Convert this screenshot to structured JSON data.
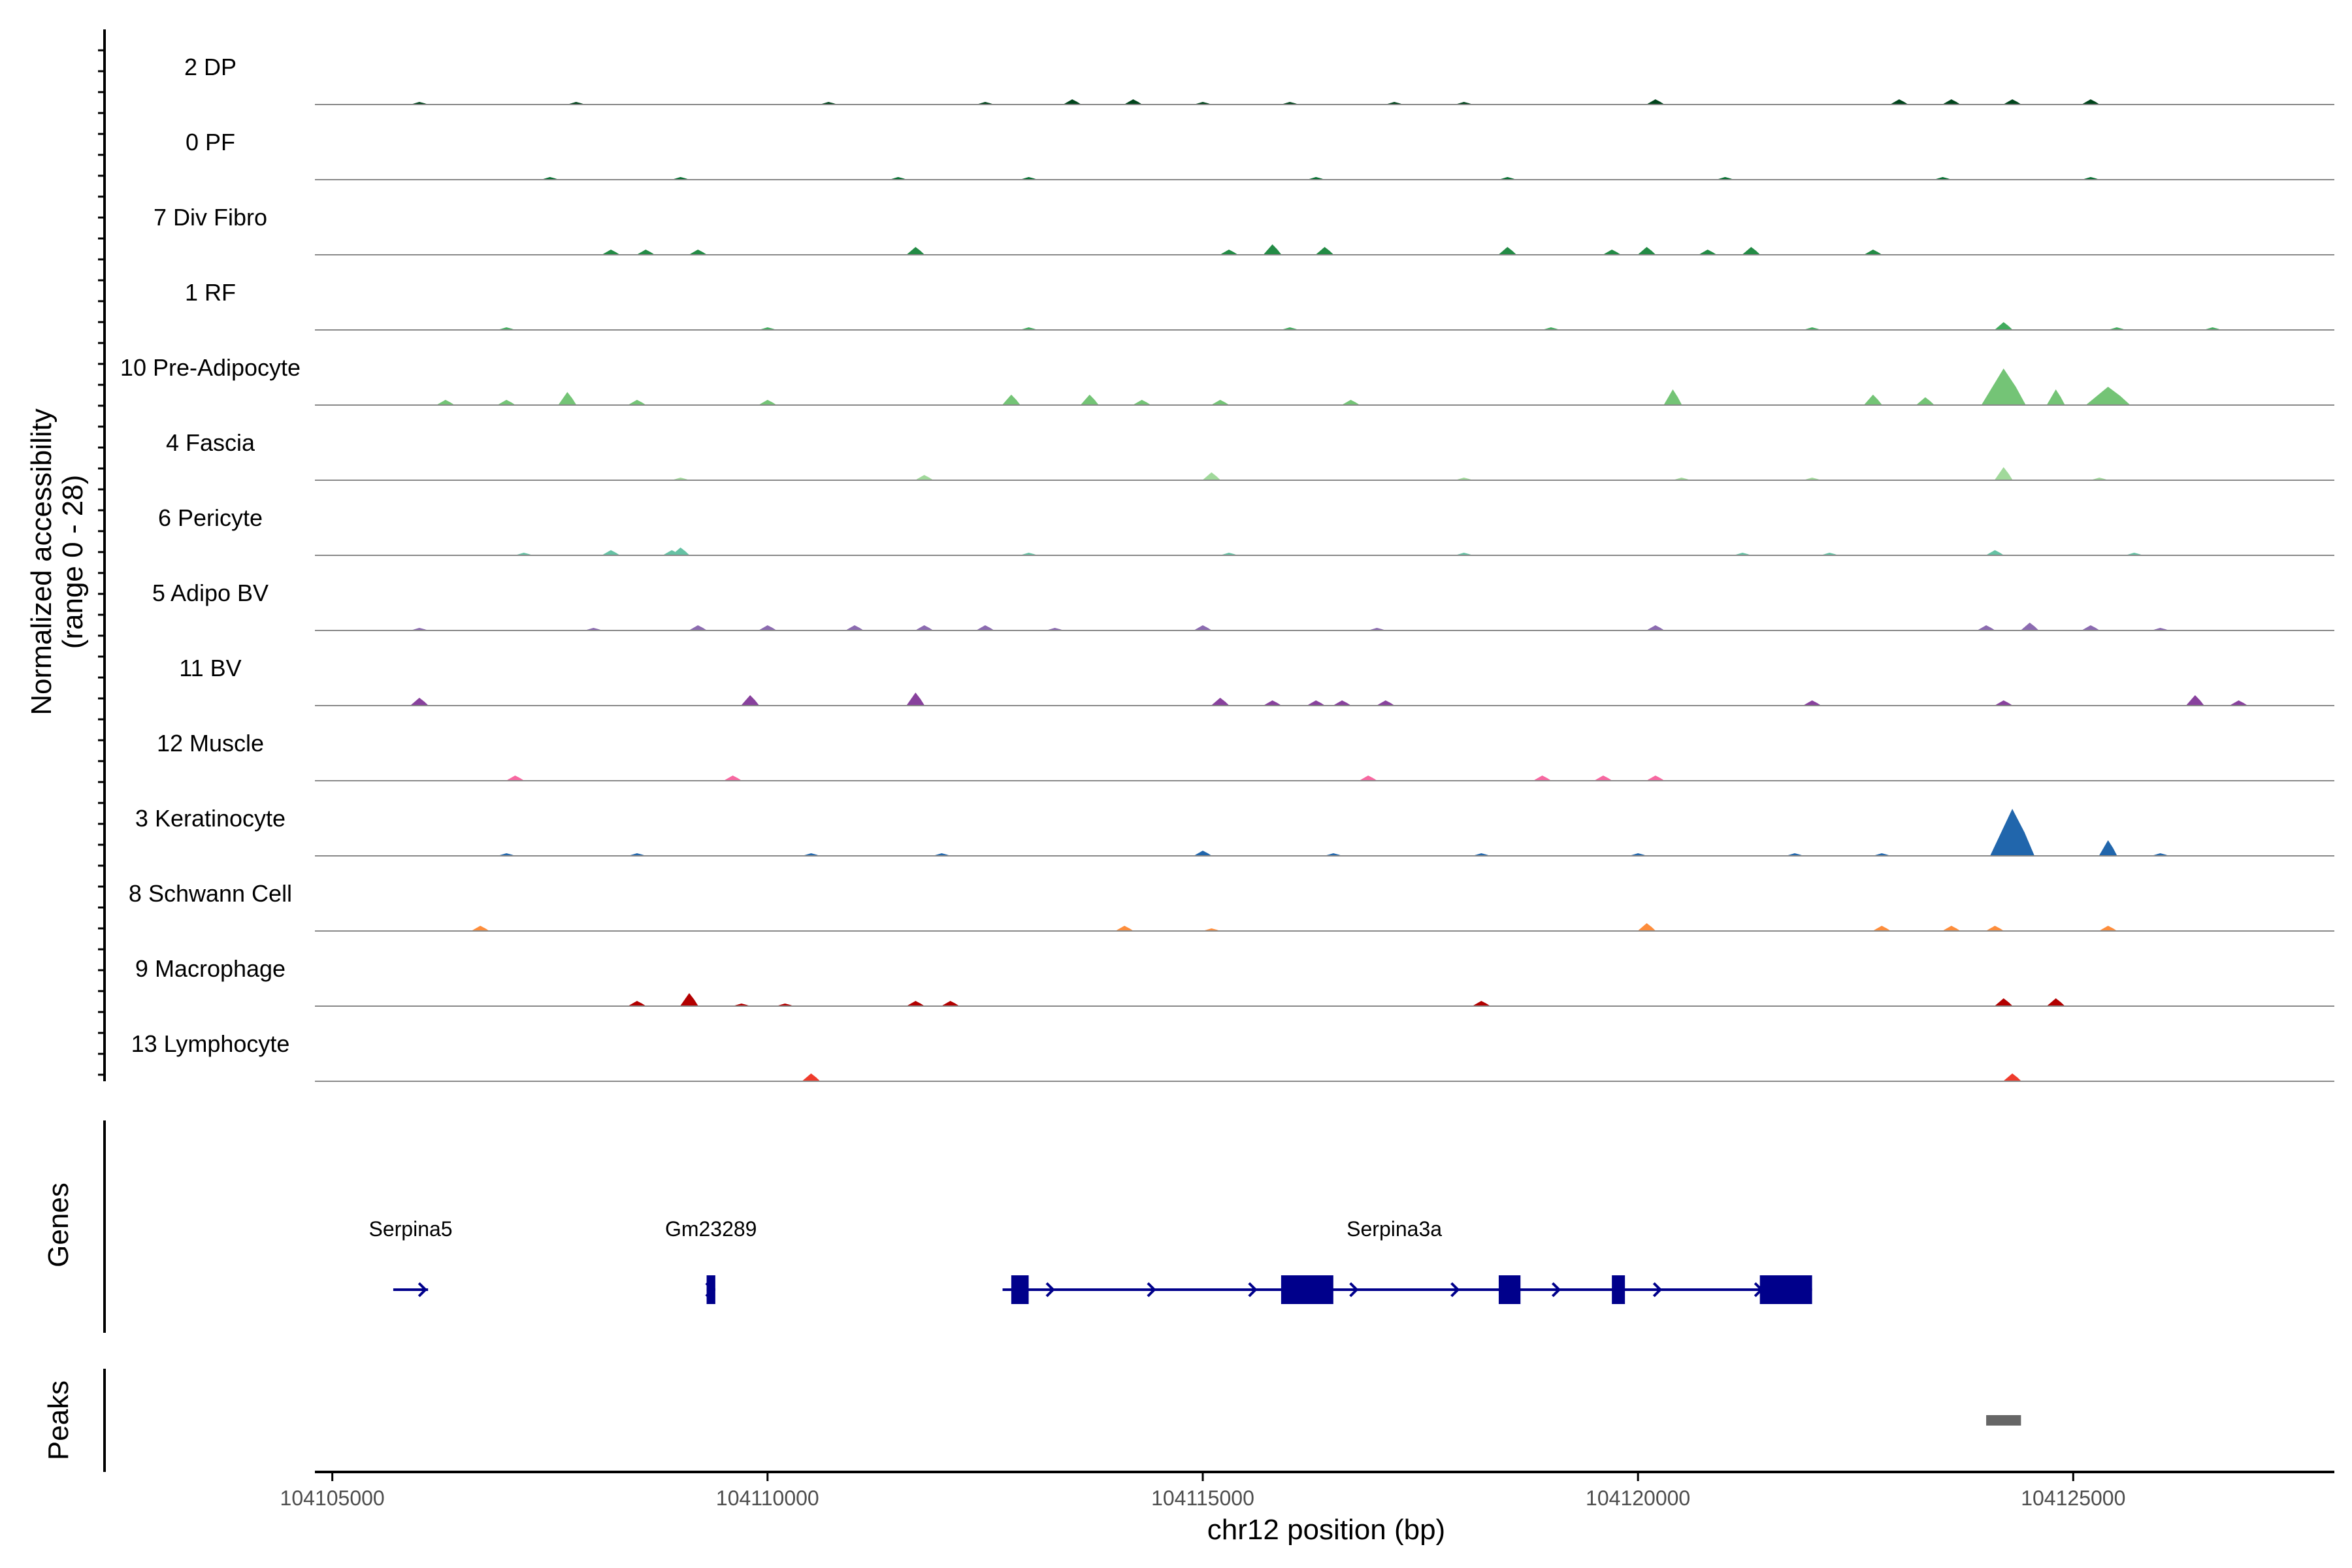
{
  "chart_data": {
    "type": "area",
    "kind": "genome coverage plot",
    "ylabel_line1": "Normalized accessibility",
    "ylabel_line2": "(range 0 - 28)",
    "xlabel": "chr12 position (bp)",
    "xlim": [
      104104800,
      104128000
    ],
    "ylim": [
      0,
      28
    ],
    "x_ticks": [
      104105000,
      104110000,
      104115000,
      104120000,
      104125000
    ],
    "x_tick_labels": [
      "104105000",
      "104110000",
      "104115000",
      "104120000",
      "104125000"
    ],
    "grid": false,
    "legend": "none",
    "panel_labels": {
      "genes": "Genes",
      "peaks": "Peaks"
    },
    "tracks": [
      {
        "name": "2 DP",
        "color": "#00441b",
        "peaks": [
          [
            104106000,
            1
          ],
          [
            104107800,
            1
          ],
          [
            104110700,
            1
          ],
          [
            104112500,
            1
          ],
          [
            104113500,
            2
          ],
          [
            104114200,
            2
          ],
          [
            104115000,
            1
          ],
          [
            104116000,
            1
          ],
          [
            104117200,
            1
          ],
          [
            104118000,
            1
          ],
          [
            104120200,
            2
          ],
          [
            104123000,
            2
          ],
          [
            104123600,
            2
          ],
          [
            104124300,
            2
          ],
          [
            104125200,
            2
          ]
        ]
      },
      {
        "name": "0 PF",
        "color": "#006d2c",
        "peaks": [
          [
            104107500,
            1
          ],
          [
            104109000,
            1
          ],
          [
            104111500,
            1
          ],
          [
            104113000,
            1
          ],
          [
            104116300,
            1
          ],
          [
            104118500,
            1
          ],
          [
            104121000,
            1
          ],
          [
            104123500,
            1
          ],
          [
            104125200,
            1
          ]
        ]
      },
      {
        "name": "7 Div Fibro",
        "color": "#238b45",
        "peaks": [
          [
            104108200,
            2
          ],
          [
            104108600,
            2
          ],
          [
            104109200,
            2
          ],
          [
            104111700,
            3
          ],
          [
            104115300,
            2
          ],
          [
            104115800,
            4
          ],
          [
            104116400,
            3
          ],
          [
            104118500,
            3
          ],
          [
            104119700,
            2
          ],
          [
            104120100,
            3
          ],
          [
            104120800,
            2
          ],
          [
            104121300,
            3
          ],
          [
            104122700,
            2
          ]
        ]
      },
      {
        "name": "1 RF",
        "color": "#41ab5d",
        "peaks": [
          [
            104107000,
            1
          ],
          [
            104110000,
            1
          ],
          [
            104113000,
            1
          ],
          [
            104116000,
            1
          ],
          [
            104119000,
            1
          ],
          [
            104122000,
            1
          ],
          [
            104124200,
            3
          ],
          [
            104125500,
            1
          ],
          [
            104126600,
            1
          ]
        ]
      },
      {
        "name": "10 Pre-Adipocyte",
        "color": "#74c476",
        "peaks": [
          [
            104106300,
            2
          ],
          [
            104107000,
            2
          ],
          [
            104107700,
            5
          ],
          [
            104108500,
            2
          ],
          [
            104110000,
            2
          ],
          [
            104112800,
            4
          ],
          [
            104113700,
            4
          ],
          [
            104114300,
            2
          ],
          [
            104115200,
            2
          ],
          [
            104116700,
            2
          ],
          [
            104120400,
            6
          ],
          [
            104122700,
            4
          ],
          [
            104123300,
            3
          ],
          [
            104124200,
            14
          ],
          [
            104124800,
            6
          ],
          [
            104125400,
            7
          ]
        ]
      },
      {
        "name": "4 Fascia",
        "color": "#a1d99b",
        "peaks": [
          [
            104109000,
            1
          ],
          [
            104111800,
            2
          ],
          [
            104115100,
            3
          ],
          [
            104118000,
            1
          ],
          [
            104120500,
            1
          ],
          [
            104122000,
            1
          ],
          [
            104124200,
            5
          ],
          [
            104125300,
            1
          ]
        ]
      },
      {
        "name": "6 Pericyte",
        "color": "#66c2a4",
        "peaks": [
          [
            104107200,
            1
          ],
          [
            104108200,
            2
          ],
          [
            104108900,
            2
          ],
          [
            104109000,
            3
          ],
          [
            104113000,
            1
          ],
          [
            104115300,
            1
          ],
          [
            104118000,
            1
          ],
          [
            104121200,
            1
          ],
          [
            104122200,
            1
          ],
          [
            104124100,
            2
          ],
          [
            104125700,
            1
          ]
        ]
      },
      {
        "name": "5 Adipo BV",
        "color": "#8c6bb1",
        "peaks": [
          [
            104106000,
            1
          ],
          [
            104108000,
            1
          ],
          [
            104109200,
            2
          ],
          [
            104110000,
            2
          ],
          [
            104111000,
            2
          ],
          [
            104111800,
            2
          ],
          [
            104112500,
            2
          ],
          [
            104113300,
            1
          ],
          [
            104115000,
            2
          ],
          [
            104117000,
            1
          ],
          [
            104120200,
            2
          ],
          [
            104124000,
            2
          ],
          [
            104124500,
            3
          ],
          [
            104125200,
            2
          ],
          [
            104126000,
            1
          ]
        ]
      },
      {
        "name": "11 BV",
        "color": "#88419d",
        "peaks": [
          [
            104106000,
            3
          ],
          [
            104109800,
            4
          ],
          [
            104111700,
            5
          ],
          [
            104115200,
            3
          ],
          [
            104115800,
            2
          ],
          [
            104116300,
            2
          ],
          [
            104116600,
            2
          ],
          [
            104117100,
            2
          ],
          [
            104122000,
            2
          ],
          [
            104124200,
            2
          ],
          [
            104126400,
            4
          ],
          [
            104126900,
            2
          ]
        ]
      },
      {
        "name": "12 Muscle",
        "color": "#f768a1",
        "peaks": [
          [
            104107100,
            2
          ],
          [
            104109600,
            2
          ],
          [
            104116900,
            2
          ],
          [
            104118900,
            2
          ],
          [
            104119600,
            2
          ],
          [
            104120200,
            2
          ]
        ]
      },
      {
        "name": "3 Keratinocyte",
        "color": "#2166ac",
        "peaks": [
          [
            104107000,
            1
          ],
          [
            104108500,
            1
          ],
          [
            104110500,
            1
          ],
          [
            104112000,
            1
          ],
          [
            104115000,
            2
          ],
          [
            104116500,
            1
          ],
          [
            104118200,
            1
          ],
          [
            104120000,
            1
          ],
          [
            104121800,
            1
          ],
          [
            104122800,
            1
          ],
          [
            104124300,
            18
          ],
          [
            104125400,
            6
          ],
          [
            104126000,
            1
          ]
        ]
      },
      {
        "name": "8 Schwann Cell",
        "color": "#fd8d3c",
        "peaks": [
          [
            104106700,
            2
          ],
          [
            104114100,
            2
          ],
          [
            104115100,
            1
          ],
          [
            104120100,
            3
          ],
          [
            104122800,
            2
          ],
          [
            104123600,
            2
          ],
          [
            104124100,
            2
          ],
          [
            104125400,
            2
          ]
        ]
      },
      {
        "name": "9 Macrophage",
        "color": "#b30000",
        "peaks": [
          [
            104108500,
            2
          ],
          [
            104109100,
            5
          ],
          [
            104109700,
            1
          ],
          [
            104110200,
            1
          ],
          [
            104111700,
            2
          ],
          [
            104112100,
            2
          ],
          [
            104118200,
            2
          ],
          [
            104124200,
            3
          ],
          [
            104124800,
            3
          ]
        ]
      },
      {
        "name": "13 Lymphocyte",
        "color": "#ef3b2c",
        "peaks": [
          [
            104110500,
            3
          ],
          [
            104124300,
            3
          ]
        ]
      }
    ],
    "genes": [
      {
        "name": "Serpina5",
        "start": 104105700,
        "end": 104106100,
        "strand": "+",
        "exons": [],
        "label_x": 104105900
      },
      {
        "name": "Gm23289",
        "start": 104109300,
        "end": 104109400,
        "strand": "+",
        "exons": [
          [
            104109300,
            104109400
          ]
        ],
        "label_x": 104109350
      },
      {
        "name": "Serpina3a",
        "start": 104112700,
        "end": 104122000,
        "strand": "+",
        "exons": [
          [
            104112800,
            104113000
          ],
          [
            104115900,
            104116500
          ],
          [
            104118400,
            104118650
          ],
          [
            104119700,
            104119850
          ],
          [
            104121400,
            104122000
          ]
        ],
        "label_x": 104117200
      }
    ],
    "peak_regions": [
      [
        104124000,
        104124400
      ]
    ],
    "colors": {
      "gene": "#00008b",
      "peak": "#666666",
      "baseline": "#888888",
      "axis": "#000000"
    }
  }
}
